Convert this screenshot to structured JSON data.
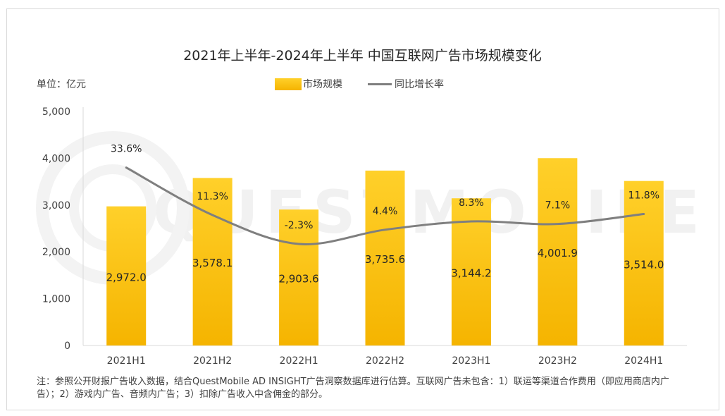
{
  "title": "2021年上半年-2024年上半年 中国互联网广告市场规模变化",
  "unit_label": "单位：亿元",
  "watermark": "QUESTMOBILE",
  "note": "注：参照公开财报广告收入数据，结合QuestMobile AD INSIGHT广告洞察数据库进行估算。互联网广告未包含：1）联运等渠道合作费用（即应用商店内广告）；2）游戏内广告、音频内广告；3）扣除广告收入中含佣金的部分。",
  "colors": {
    "bar_top": "#ffd02a",
    "bar_bottom": "#f5b400",
    "line": "#7f7f7f",
    "axis": "#d9d9d9"
  },
  "chart_data": {
    "type": "bar",
    "categories": [
      "2021H1",
      "2021H2",
      "2022H1",
      "2022H2",
      "2023H1",
      "2023H2",
      "2024H1"
    ],
    "series": [
      {
        "name": "市场规模",
        "type": "bar",
        "values": [
          2972.0,
          3578.1,
          2903.6,
          3735.6,
          3144.2,
          4001.9,
          3514.0
        ],
        "labels": [
          "2,972.0",
          "3,578.1",
          "2,903.6",
          "3,735.6",
          "3,144.2",
          "4,001.9",
          "3,514.0"
        ]
      },
      {
        "name": "同比增长率",
        "type": "line",
        "values": [
          33.6,
          11.3,
          -2.3,
          4.4,
          8.3,
          7.1,
          11.8
        ],
        "labels": [
          "33.6%",
          "11.3%",
          "-2.3%",
          "4.4%",
          "8.3%",
          "7.1%",
          "11.8%"
        ]
      }
    ],
    "y_ticks": [
      "0",
      "1,000",
      "2,000",
      "3,000",
      "4,000",
      "5,000"
    ],
    "ylim": [
      0,
      5000
    ],
    "secondary_ylim": [
      -50,
      60
    ],
    "legend_position": "top-center",
    "grid": false
  }
}
